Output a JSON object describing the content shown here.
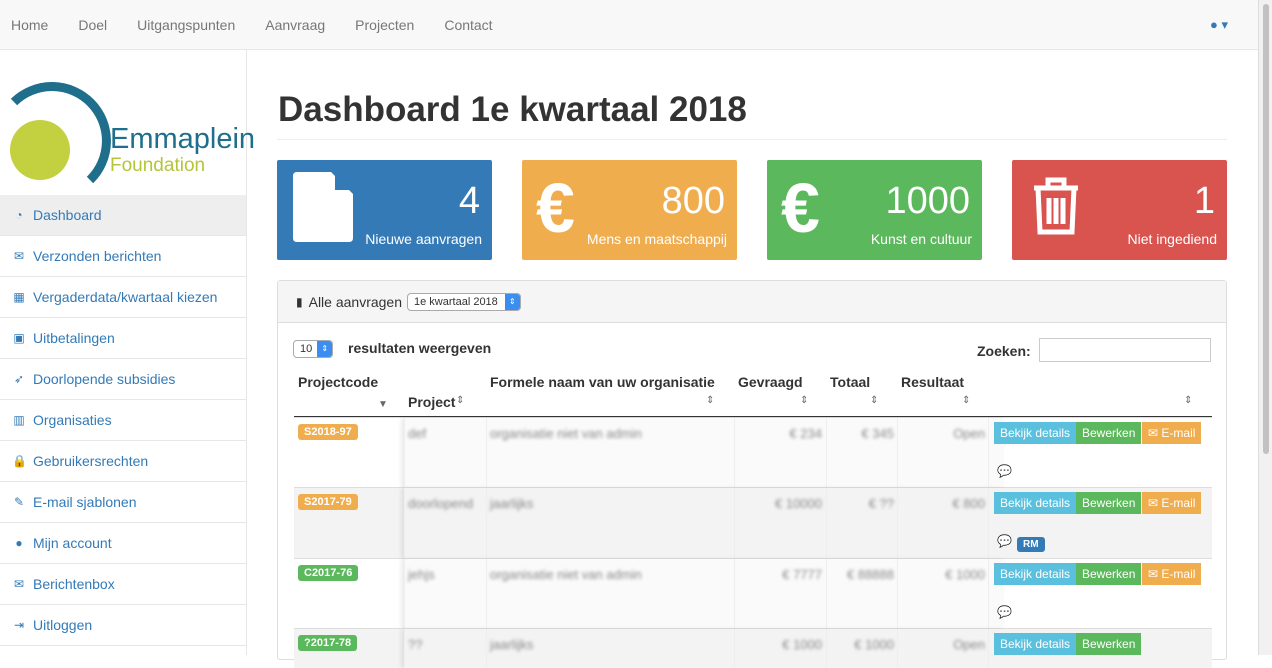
{
  "nav": {
    "items": [
      "Home",
      "Doel",
      "Uitgangspunten",
      "Aanvraag",
      "Projecten",
      "Contact"
    ],
    "user_icon": "user-icon"
  },
  "logo": {
    "line1": "Emmaplein",
    "line2": "Foundation"
  },
  "sidebar": {
    "items": [
      {
        "label": "Dashboard",
        "icon": "dashboard-icon"
      },
      {
        "label": "Verzonden berichten",
        "icon": "envelope-icon"
      },
      {
        "label": "Vergaderdata/kwartaal kiezen",
        "icon": "calendar-icon"
      },
      {
        "label": "Uitbetalingen",
        "icon": "money-icon"
      },
      {
        "label": "Doorlopende subsidies",
        "icon": "rocket-icon"
      },
      {
        "label": "Organisaties",
        "icon": "building-icon"
      },
      {
        "label": "Gebruikersrechten",
        "icon": "lock-icon"
      },
      {
        "label": "E-mail sjablonen",
        "icon": "edit-icon"
      },
      {
        "label": "Mijn account",
        "icon": "user-icon"
      },
      {
        "label": "Berichtenbox",
        "icon": "envelope-icon"
      },
      {
        "label": "Uitloggen",
        "icon": "sign-out-icon"
      }
    ]
  },
  "page": {
    "title": "Dashboard 1e kwartaal 2018"
  },
  "cards": [
    {
      "value": "4",
      "label": "Nieuwe aanvragen",
      "color": "#337ab7",
      "icon": "file-icon"
    },
    {
      "value": "800",
      "label": "Mens en maatschappij",
      "color": "#f0ad4e",
      "icon": "euro-icon",
      "glyph": "€"
    },
    {
      "value": "1000",
      "label": "Kunst en cultuur",
      "color": "#5cb85c",
      "icon": "euro-icon",
      "glyph": "€"
    },
    {
      "value": "1",
      "label": "Niet ingediend",
      "color": "#d9534f",
      "icon": "trash-icon"
    }
  ],
  "panel": {
    "title": "Alle aanvragen",
    "quarter": "1e kwartaal 2018",
    "page_size": "10",
    "page_size_label": "resultaten weergeven",
    "search_label": "Zoeken:",
    "search_value": ""
  },
  "table": {
    "headers": [
      "Projectcode",
      "Project",
      "Formele naam van uw organisatie",
      "Gevraagd",
      "Totaal",
      "Resultaat"
    ],
    "buttons": {
      "details": "Bekijk details",
      "edit": "Bewerken",
      "email": "E-mail"
    },
    "rows": [
      {
        "code": "S2018-97",
        "code_color": "#f0ad4e",
        "project": "def",
        "org": "organisatie niet van admin",
        "gevraagd": "€ 234",
        "totaal": "€ 345",
        "resultaat": "Open",
        "email": true,
        "tag": ""
      },
      {
        "code": "S2017-79",
        "code_color": "#f0ad4e",
        "project": "doorlopend",
        "org": "jaarlijks",
        "gevraagd": "€ 10000",
        "totaal": "€ ??",
        "resultaat": "€ 800",
        "email": true,
        "tag": "RM"
      },
      {
        "code": "C2017-76",
        "code_color": "#5cb85c",
        "project": "jehjs",
        "org": "organisatie niet van admin",
        "gevraagd": "€ 7777",
        "totaal": "€ 88888",
        "resultaat": "€ 1000",
        "email": true,
        "tag": ""
      },
      {
        "code": "?2017-78",
        "code_color": "#5cb85c",
        "project": "??",
        "org": "jaarlijks",
        "gevraagd": "€ 1000",
        "totaal": "€ 1000",
        "resultaat": "Open",
        "email": false,
        "tag": ""
      }
    ]
  }
}
